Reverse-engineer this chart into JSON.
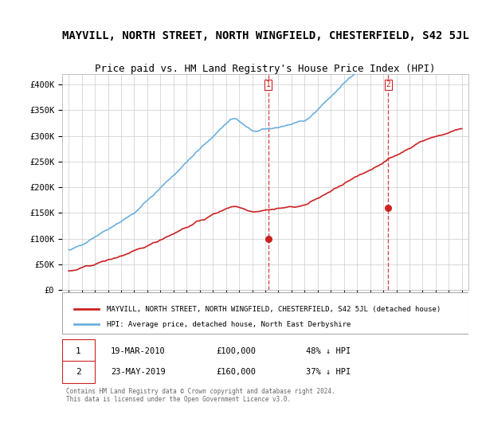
{
  "title": "MAYVILL, NORTH STREET, NORTH WINGFIELD, CHESTERFIELD, S42 5JL",
  "subtitle": "Price paid vs. HM Land Registry's House Price Index (HPI)",
  "title_fontsize": 10,
  "subtitle_fontsize": 9,
  "hpi_color": "#6ab0e0",
  "price_color": "#cc2222",
  "vline_color": "#cc2222",
  "background_color": "#ffffff",
  "grid_color": "#cccccc",
  "ylim": [
    0,
    420000
  ],
  "yticks": [
    0,
    50000,
    100000,
    150000,
    200000,
    250000,
    300000,
    350000,
    400000
  ],
  "ytick_labels": [
    "£0",
    "£50K",
    "£100K",
    "£150K",
    "£200K",
    "£250K",
    "£300K",
    "£350K",
    "£400K"
  ],
  "xlim_start": 1994.5,
  "xlim_end": 2025.5,
  "sale1_x": 2010.22,
  "sale1_y": 100000,
  "sale1_label": "1",
  "sale2_x": 2019.39,
  "sale2_y": 160000,
  "sale2_label": "2",
  "legend_entries": [
    "MAYVILL, NORTH STREET, NORTH WINGFIELD, CHESTERFIELD, S42 5JL (detached house)",
    "HPI: Average price, detached house, North East Derbyshire"
  ],
  "annotation1_date": "19-MAR-2010",
  "annotation1_price": "£100,000",
  "annotation1_hpi": "48% ↓ HPI",
  "annotation2_date": "23-MAY-2019",
  "annotation2_price": "£160,000",
  "annotation2_hpi": "37% ↓ HPI",
  "footer": "Contains HM Land Registry data © Crown copyright and database right 2024.\nThis data is licensed under the Open Government Licence v3.0."
}
